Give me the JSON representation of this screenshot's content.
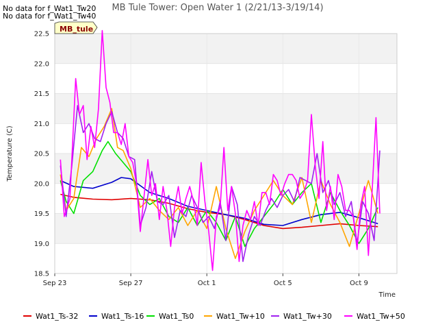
{
  "notices": [
    "No data for f_Wat1_Tw20",
    "No data for f_Wat1_Tw40"
  ],
  "badge": "MB_tule",
  "chart_data": {
    "type": "line",
    "title": "MB Tule Tower: Open Water 1 (2/21/13-3/19/14)",
    "xlabel": "Time",
    "ylabel": "Temperature (C)",
    "ylim": [
      18.5,
      22.5
    ],
    "yticks": [
      18.5,
      19.0,
      19.5,
      20.0,
      20.5,
      21.0,
      21.5,
      22.0,
      22.5
    ],
    "xlim": [
      0,
      18
    ],
    "xticks": [
      {
        "label": "Sep 23",
        "x": 0
      },
      {
        "label": "Sep 27",
        "x": 4
      },
      {
        "label": "Oct 1",
        "x": 8
      },
      {
        "label": "Oct 5",
        "x": 12
      },
      {
        "label": "Oct 9",
        "x": 16
      }
    ],
    "grid": true,
    "legend": "bottom",
    "series": [
      {
        "name": "Wat1_Ts-32",
        "color": "#e00000",
        "x": [
          0.3,
          1,
          2,
          3,
          4,
          5,
          6,
          7,
          8,
          9,
          10,
          11,
          12,
          13,
          14,
          15,
          16,
          17
        ],
        "y": [
          19.82,
          19.77,
          19.74,
          19.73,
          19.75,
          19.73,
          19.67,
          19.58,
          19.52,
          19.48,
          19.4,
          19.3,
          19.25,
          19.27,
          19.3,
          19.33,
          19.3,
          19.28
        ]
      },
      {
        "name": "Wat1_Ts-16",
        "color": "#0000cc",
        "x": [
          0.3,
          1,
          2,
          3,
          3.5,
          4,
          5,
          6,
          7,
          8,
          9,
          10,
          11,
          12,
          13,
          14,
          15,
          16,
          17
        ],
        "y": [
          20.05,
          19.95,
          19.92,
          20.02,
          20.1,
          20.08,
          19.85,
          19.75,
          19.62,
          19.55,
          19.48,
          19.42,
          19.32,
          19.3,
          19.4,
          19.48,
          19.52,
          19.43,
          19.33
        ]
      },
      {
        "name": "Wat1_Ts0",
        "color": "#00e000",
        "x": [
          0.3,
          0.6,
          1,
          1.5,
          2,
          2.5,
          2.8,
          3.2,
          3.6,
          4,
          4.5,
          5,
          5.5,
          6,
          6.5,
          7,
          7.5,
          8,
          8.5,
          9,
          9.5,
          10,
          10.5,
          11,
          11.5,
          12,
          12.5,
          13,
          13.5,
          14,
          14.5,
          15,
          15.5,
          16,
          16.5,
          17
        ],
        "y": [
          20.05,
          19.7,
          19.5,
          20.05,
          20.2,
          20.55,
          20.7,
          20.5,
          20.35,
          20.2,
          19.8,
          19.65,
          19.75,
          19.45,
          19.35,
          19.6,
          19.3,
          19.55,
          19.35,
          19.05,
          19.45,
          18.95,
          19.25,
          19.45,
          19.65,
          19.9,
          19.65,
          19.85,
          20.0,
          19.35,
          19.85,
          19.55,
          19.3,
          19.0,
          19.25,
          19.6
        ]
      },
      {
        "name": "Wat1_Tw+10",
        "color": "#ffa500",
        "x": [
          0.3,
          0.6,
          1,
          1.4,
          1.8,
          2.2,
          2.6,
          3,
          3.3,
          3.6,
          4,
          4.5,
          5,
          5.5,
          6,
          6.5,
          7,
          7.5,
          8,
          8.5,
          9,
          9.5,
          10,
          10.5,
          11,
          11.5,
          12,
          12.5,
          13,
          13.5,
          14,
          14.5,
          15,
          15.5,
          16,
          16.5,
          17
        ],
        "y": [
          20.15,
          19.55,
          19.75,
          20.6,
          20.45,
          20.75,
          20.95,
          21.25,
          20.6,
          20.55,
          20.25,
          19.6,
          19.75,
          19.55,
          19.4,
          19.6,
          19.3,
          19.55,
          19.25,
          19.95,
          19.25,
          18.75,
          19.2,
          19.55,
          19.8,
          20.05,
          19.8,
          19.65,
          20.1,
          19.35,
          20.05,
          19.65,
          19.35,
          18.95,
          19.5,
          20.05,
          19.5
        ]
      },
      {
        "name": "Wat1_Tw+30",
        "color": "#a020f0",
        "x": [
          0.3,
          0.6,
          0.9,
          1.2,
          1.5,
          1.8,
          2.1,
          2.4,
          2.7,
          3,
          3.3,
          3.6,
          3.9,
          4.2,
          4.5,
          4.8,
          5.1,
          5.4,
          5.7,
          6,
          6.3,
          6.6,
          6.9,
          7.2,
          7.5,
          7.8,
          8.1,
          8.4,
          8.7,
          9,
          9.3,
          9.6,
          9.9,
          10.2,
          10.5,
          10.8,
          11.1,
          11.4,
          11.7,
          12,
          12.3,
          12.6,
          12.9,
          13.2,
          13.5,
          13.8,
          14.1,
          14.4,
          14.7,
          15,
          15.3,
          15.6,
          15.9,
          16.2,
          16.5,
          16.8,
          17.1
        ],
        "y": [
          20.3,
          19.45,
          20.3,
          21.3,
          20.85,
          21.0,
          20.75,
          20.7,
          21.0,
          21.2,
          20.85,
          20.75,
          20.45,
          20.4,
          19.3,
          19.6,
          20.2,
          19.7,
          19.65,
          19.8,
          19.1,
          19.55,
          19.45,
          19.8,
          19.6,
          19.35,
          19.45,
          19.25,
          19.7,
          19.05,
          19.95,
          19.65,
          18.7,
          19.15,
          19.45,
          19.3,
          19.55,
          19.75,
          19.6,
          19.8,
          19.9,
          19.7,
          20.1,
          20.05,
          20.0,
          20.5,
          19.85,
          20.05,
          19.65,
          19.85,
          19.45,
          19.7,
          19.0,
          19.7,
          19.5,
          19.05,
          20.55
        ]
      },
      {
        "name": "Wat1_Tw+50",
        "color": "#ff00ff",
        "x": [
          0.3,
          0.5,
          0.8,
          1.1,
          1.3,
          1.5,
          1.7,
          1.9,
          2.1,
          2.3,
          2.5,
          2.7,
          2.9,
          3.1,
          3.3,
          3.5,
          3.7,
          3.9,
          4.1,
          4.3,
          4.5,
          4.7,
          4.9,
          5.1,
          5.3,
          5.5,
          5.7,
          5.9,
          6.1,
          6.3,
          6.5,
          6.7,
          6.9,
          7.1,
          7.3,
          7.5,
          7.7,
          7.9,
          8.1,
          8.3,
          8.5,
          8.7,
          8.9,
          9.1,
          9.3,
          9.5,
          9.7,
          9.9,
          10.1,
          10.3,
          10.5,
          10.7,
          10.9,
          11.1,
          11.3,
          11.5,
          11.7,
          11.9,
          12.1,
          12.3,
          12.5,
          12.7,
          12.9,
          13.1,
          13.3,
          13.5,
          13.7,
          13.9,
          14.1,
          14.3,
          14.5,
          14.7,
          14.9,
          15.1,
          15.3,
          15.5,
          15.7,
          15.9,
          16.1,
          16.3,
          16.5,
          16.7,
          16.9,
          17.1
        ],
        "y": [
          20.4,
          19.45,
          19.75,
          21.75,
          21.15,
          21.3,
          20.4,
          20.95,
          20.6,
          21.25,
          22.55,
          21.6,
          21.35,
          20.85,
          20.85,
          20.65,
          21.0,
          20.45,
          20.35,
          20.0,
          19.2,
          19.8,
          20.4,
          19.8,
          20.0,
          19.4,
          19.95,
          19.55,
          18.95,
          19.6,
          19.95,
          19.5,
          19.75,
          19.95,
          19.7,
          19.3,
          20.35,
          19.7,
          19.2,
          18.55,
          19.45,
          19.6,
          20.6,
          19.55,
          19.95,
          19.5,
          18.7,
          19.3,
          19.55,
          19.4,
          19.7,
          19.3,
          19.85,
          19.85,
          19.65,
          20.15,
          20.05,
          19.8,
          20.0,
          20.15,
          20.15,
          20.05,
          19.75,
          19.85,
          20.05,
          21.15,
          20.3,
          19.75,
          20.7,
          19.55,
          19.95,
          19.4,
          20.15,
          19.95,
          19.55,
          19.55,
          19.45,
          18.9,
          19.65,
          19.95,
          18.8,
          19.9,
          21.1,
          19.5
        ]
      }
    ]
  }
}
